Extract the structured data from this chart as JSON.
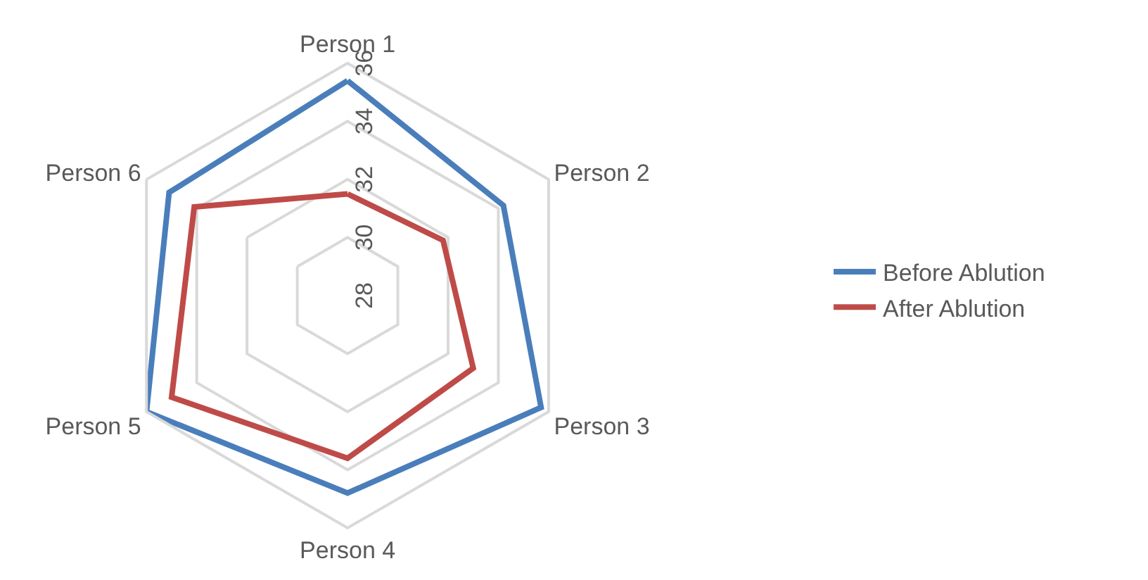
{
  "chart_data": {
    "type": "radar",
    "categories": [
      "Person 1",
      "Person 2",
      "Person 3",
      "Person 4",
      "Person 5",
      "Person 6"
    ],
    "series": [
      {
        "name": "Before Ablution",
        "color": "#4a7ebb",
        "values": [
          35.4,
          34.2,
          35.7,
          34.8,
          36,
          35.1
        ]
      },
      {
        "name": "After Ablution",
        "color": "#be4b48",
        "values": [
          31.5,
          31.8,
          33.0,
          33.6,
          35.0,
          34.1
        ]
      }
    ],
    "ylim": [
      28,
      36
    ],
    "yticks": [
      28,
      30,
      32,
      34,
      36
    ],
    "grid": true,
    "legend": "right",
    "marker": "none",
    "line_style": "solid"
  }
}
